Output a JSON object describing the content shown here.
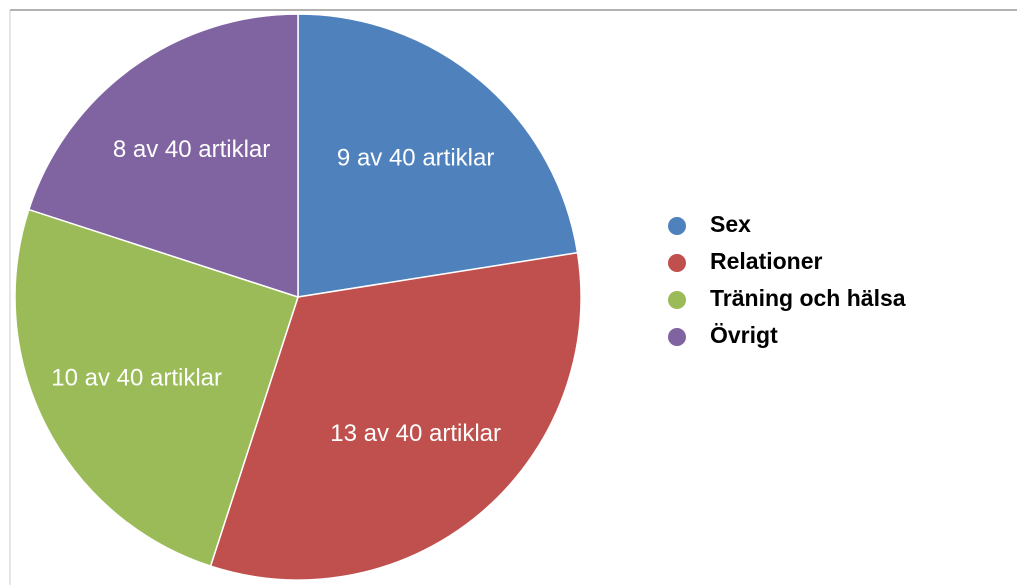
{
  "chart_data": {
    "type": "pie",
    "categories": [
      "Sex",
      "Relationer",
      "Träning och hälsa",
      "Övrigt"
    ],
    "values": [
      9,
      13,
      10,
      8
    ],
    "value_labels": [
      "9 av 40 artiklar",
      "13 av 40 artiklar",
      "10 av 40 artiklar",
      "8 av 40 artiklar"
    ],
    "colors": [
      "#4f81bd",
      "#c0504d",
      "#9bbb59",
      "#8064a2"
    ],
    "legend": "right"
  }
}
